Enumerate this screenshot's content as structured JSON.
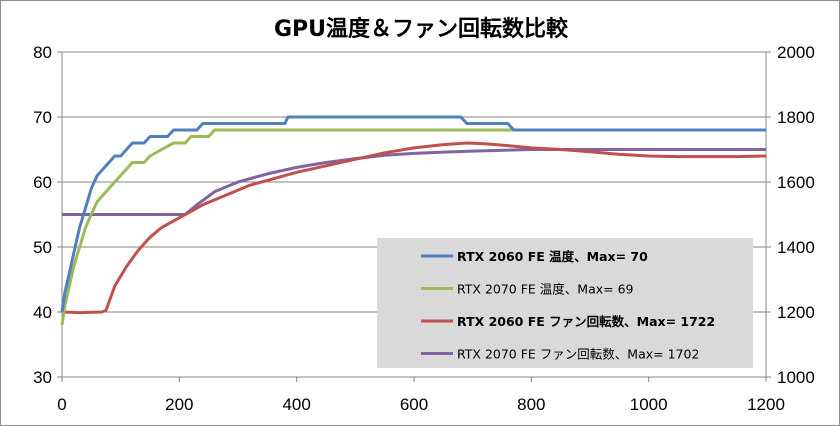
{
  "chart_data": {
    "type": "line",
    "title": "GPU温度＆ファン回転数比較",
    "xlabel": "",
    "ylabel": "",
    "xlim": [
      0,
      1200
    ],
    "ylim": [
      30,
      80
    ],
    "y2lim": [
      1000,
      2000
    ],
    "x_ticks": [
      "0",
      "200",
      "400",
      "600",
      "800",
      "1000",
      "1200"
    ],
    "y_ticks": [
      "30",
      "40",
      "50",
      "60",
      "70",
      "80"
    ],
    "y2_ticks": [
      "1000",
      "1200",
      "1400",
      "1600",
      "1800",
      "2000"
    ],
    "grid": "horizontal",
    "legend_position": "bottom-right",
    "series": [
      {
        "name": "RTX 2060 FE 温度、Max= 70",
        "axis": "left",
        "color": "#4f81bd",
        "bold": true,
        "points": [
          [
            0,
            40
          ],
          [
            5,
            43
          ],
          [
            10,
            45
          ],
          [
            20,
            49
          ],
          [
            30,
            53
          ],
          [
            40,
            56
          ],
          [
            50,
            59
          ],
          [
            60,
            61
          ],
          [
            70,
            62
          ],
          [
            80,
            63
          ],
          [
            90,
            64
          ],
          [
            100,
            64
          ],
          [
            110,
            65
          ],
          [
            120,
            66
          ],
          [
            140,
            66
          ],
          [
            150,
            67
          ],
          [
            180,
            67
          ],
          [
            190,
            68
          ],
          [
            230,
            68
          ],
          [
            240,
            69
          ],
          [
            380,
            69
          ],
          [
            385,
            70
          ],
          [
            680,
            70
          ],
          [
            690,
            69
          ],
          [
            760,
            69
          ],
          [
            770,
            68
          ],
          [
            1195,
            68
          ],
          [
            1200,
            68
          ]
        ]
      },
      {
        "name": "RTX 2070 FE 温度、Max= 69",
        "axis": "left",
        "color": "#9bbb59",
        "bold": false,
        "points": [
          [
            0,
            38
          ],
          [
            5,
            41
          ],
          [
            10,
            43
          ],
          [
            20,
            47
          ],
          [
            30,
            50
          ],
          [
            40,
            53
          ],
          [
            50,
            55
          ],
          [
            60,
            57
          ],
          [
            70,
            58
          ],
          [
            80,
            59
          ],
          [
            90,
            60
          ],
          [
            100,
            61
          ],
          [
            110,
            62
          ],
          [
            120,
            63
          ],
          [
            140,
            63
          ],
          [
            150,
            64
          ],
          [
            170,
            65
          ],
          [
            190,
            66
          ],
          [
            210,
            66
          ],
          [
            220,
            67
          ],
          [
            250,
            67
          ],
          [
            260,
            68
          ],
          [
            1190,
            68
          ],
          [
            1200,
            68
          ]
        ]
      },
      {
        "name": "RTX 2060 FE ファン回転数、Max= 1722",
        "axis": "right",
        "color": "#c0504d",
        "bold": true,
        "points": [
          [
            0,
            1200
          ],
          [
            30,
            1198
          ],
          [
            68,
            1200
          ],
          [
            75,
            1205
          ],
          [
            90,
            1280
          ],
          [
            110,
            1340
          ],
          [
            130,
            1390
          ],
          [
            150,
            1430
          ],
          [
            170,
            1460
          ],
          [
            200,
            1490
          ],
          [
            240,
            1530
          ],
          [
            280,
            1560
          ],
          [
            320,
            1590
          ],
          [
            360,
            1610
          ],
          [
            400,
            1630
          ],
          [
            450,
            1650
          ],
          [
            500,
            1670
          ],
          [
            550,
            1690
          ],
          [
            600,
            1705
          ],
          [
            650,
            1715
          ],
          [
            690,
            1720
          ],
          [
            720,
            1718
          ],
          [
            760,
            1712
          ],
          [
            800,
            1705
          ],
          [
            850,
            1700
          ],
          [
            900,
            1693
          ],
          [
            950,
            1685
          ],
          [
            1000,
            1680
          ],
          [
            1050,
            1678
          ],
          [
            1100,
            1678
          ],
          [
            1150,
            1678
          ],
          [
            1200,
            1680
          ]
        ]
      },
      {
        "name": "RTX 2070 FE ファン回転数、Max= 1702",
        "axis": "right",
        "color": "#8064a2",
        "bold": false,
        "points": [
          [
            0,
            1500
          ],
          [
            40,
            1500
          ],
          [
            100,
            1500
          ],
          [
            150,
            1500
          ],
          [
            210,
            1500
          ],
          [
            230,
            1530
          ],
          [
            260,
            1570
          ],
          [
            300,
            1600
          ],
          [
            350,
            1625
          ],
          [
            400,
            1645
          ],
          [
            450,
            1660
          ],
          [
            500,
            1672
          ],
          [
            550,
            1682
          ],
          [
            600,
            1688
          ],
          [
            650,
            1692
          ],
          [
            700,
            1695
          ],
          [
            800,
            1700
          ],
          [
            900,
            1700
          ],
          [
            1000,
            1700
          ],
          [
            1100,
            1700
          ],
          [
            1200,
            1700
          ]
        ]
      }
    ]
  }
}
